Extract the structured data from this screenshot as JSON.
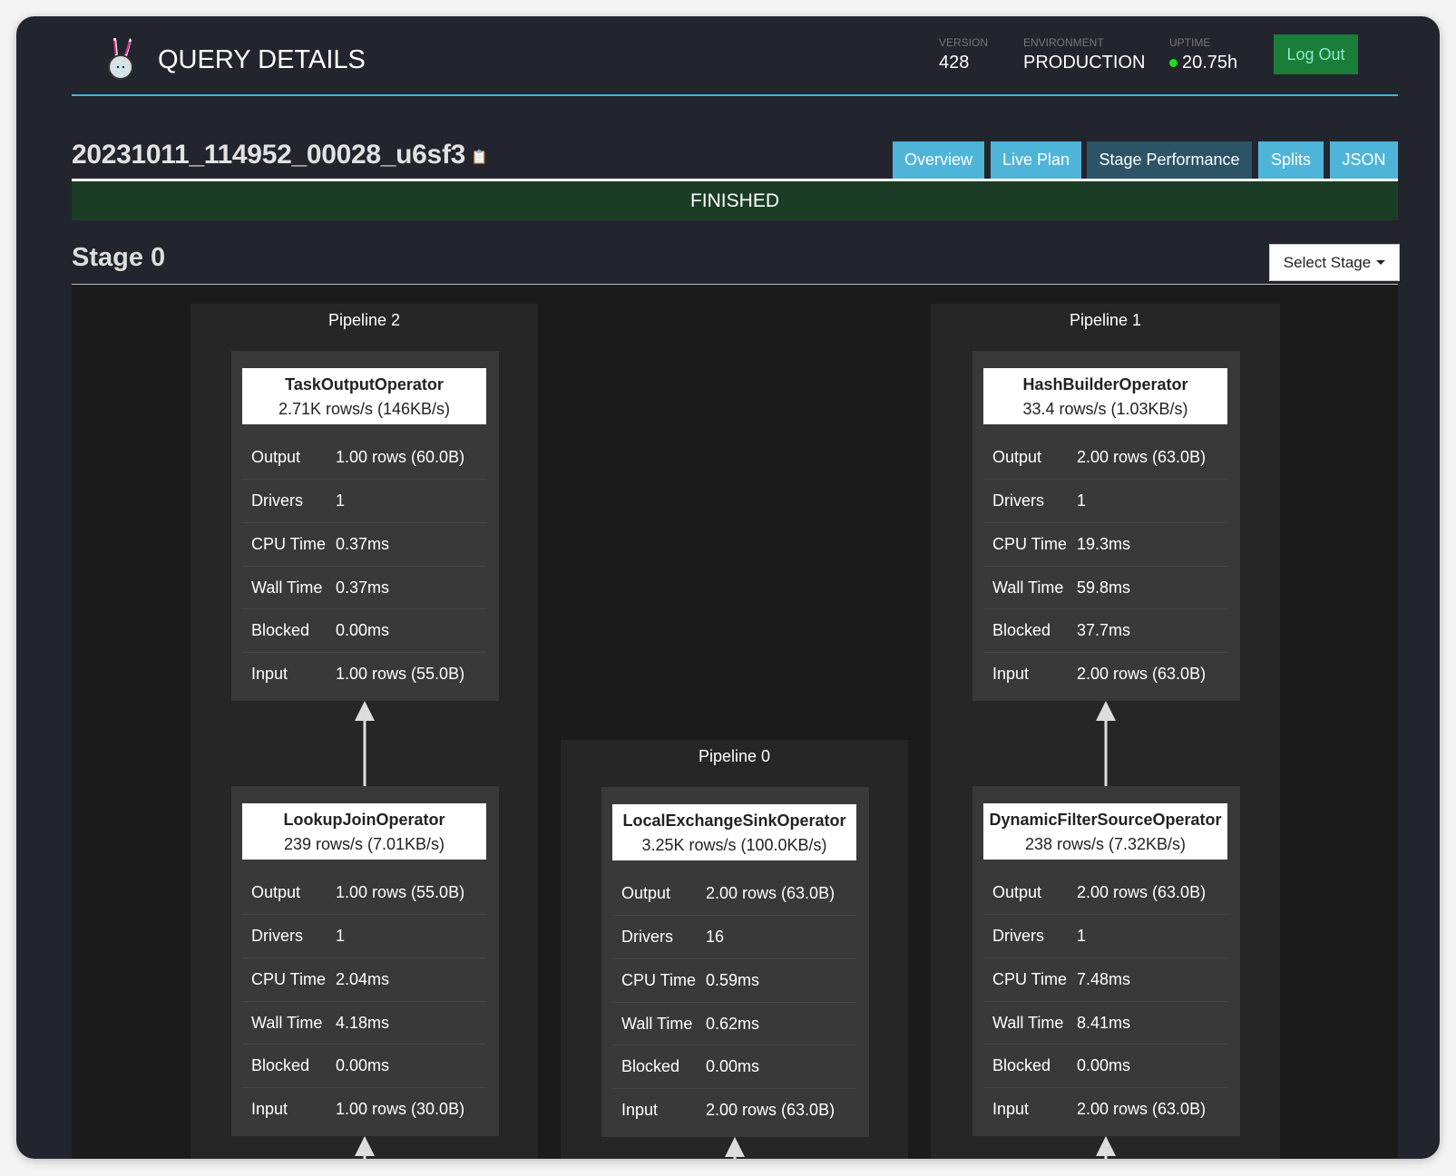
{
  "header": {
    "title": "QUERY DETAILS",
    "version_label": "VERSION",
    "version": "428",
    "environment_label": "ENVIRONMENT",
    "environment": "PRODUCTION",
    "uptime_label": "UPTIME",
    "uptime": "20.75h",
    "logout": "Log Out",
    "status_color": "#1fdc1f"
  },
  "query": {
    "id": "20231011_114952_00028_u6sf3",
    "status": "FINISHED"
  },
  "tabs": [
    {
      "label": "Overview"
    },
    {
      "label": "Live Plan"
    },
    {
      "label": "Stage Performance",
      "active": true
    },
    {
      "label": "Splits"
    },
    {
      "label": "JSON"
    }
  ],
  "stage": {
    "title": "Stage 0",
    "select_label": "Select Stage"
  },
  "pipelines": [
    {
      "title": "Pipeline 2",
      "operators": [
        {
          "name": "TaskOutputOperator",
          "rate": "2.71K rows/s (146KB/s)",
          "stats": [
            [
              "Output",
              "1.00 rows (60.0B)"
            ],
            [
              "Drivers",
              "1"
            ],
            [
              "CPU Time",
              "0.37ms"
            ],
            [
              "Wall Time",
              "0.37ms"
            ],
            [
              "Blocked",
              "0.00ms"
            ],
            [
              "Input",
              "1.00 rows (55.0B)"
            ]
          ]
        },
        {
          "name": "LookupJoinOperator",
          "rate": "239 rows/s (7.01KB/s)",
          "stats": [
            [
              "Output",
              "1.00 rows (55.0B)"
            ],
            [
              "Drivers",
              "1"
            ],
            [
              "CPU Time",
              "2.04ms"
            ],
            [
              "Wall Time",
              "4.18ms"
            ],
            [
              "Blocked",
              "0.00ms"
            ],
            [
              "Input",
              "1.00 rows (30.0B)"
            ]
          ]
        }
      ]
    },
    {
      "title": "Pipeline 0",
      "operators": [
        {
          "name": "LocalExchangeSinkOperator",
          "rate": "3.25K rows/s (100.0KB/s)",
          "stats": [
            [
              "Output",
              "2.00 rows (63.0B)"
            ],
            [
              "Drivers",
              "16"
            ],
            [
              "CPU Time",
              "0.59ms"
            ],
            [
              "Wall Time",
              "0.62ms"
            ],
            [
              "Blocked",
              "0.00ms"
            ],
            [
              "Input",
              "2.00 rows (63.0B)"
            ]
          ]
        }
      ]
    },
    {
      "title": "Pipeline 1",
      "operators": [
        {
          "name": "HashBuilderOperator",
          "rate": "33.4 rows/s (1.03KB/s)",
          "stats": [
            [
              "Output",
              "2.00 rows (63.0B)"
            ],
            [
              "Drivers",
              "1"
            ],
            [
              "CPU Time",
              "19.3ms"
            ],
            [
              "Wall Time",
              "59.8ms"
            ],
            [
              "Blocked",
              "37.7ms"
            ],
            [
              "Input",
              "2.00 rows (63.0B)"
            ]
          ]
        },
        {
          "name": "DynamicFilterSourceOperator",
          "rate": "238 rows/s (7.32KB/s)",
          "stats": [
            [
              "Output",
              "2.00 rows (63.0B)"
            ],
            [
              "Drivers",
              "1"
            ],
            [
              "CPU Time",
              "7.48ms"
            ],
            [
              "Wall Time",
              "8.41ms"
            ],
            [
              "Blocked",
              "0.00ms"
            ],
            [
              "Input",
              "2.00 rows (63.0B)"
            ]
          ]
        }
      ]
    }
  ]
}
